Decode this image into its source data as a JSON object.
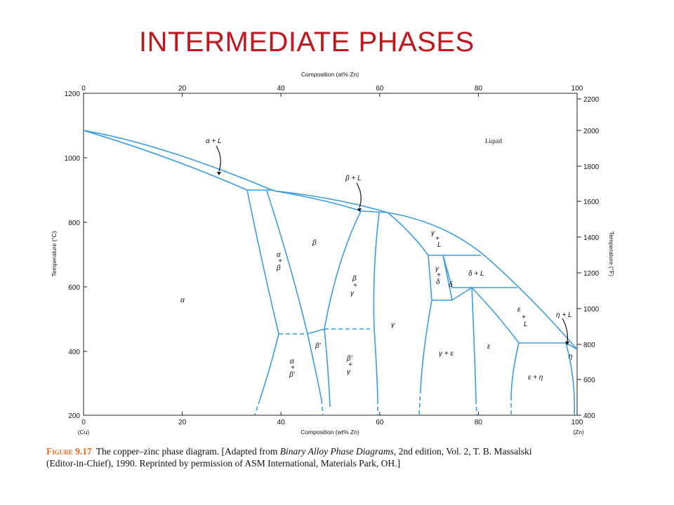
{
  "slide": {
    "title": "INTERMEDIATE PHASES"
  },
  "axes": {
    "top_label": "Composition (at% Zn)",
    "bottom_label": "Composition (wt% Zn)",
    "left_label": "Temperature (°C)",
    "right_label": "Temperature (°F)",
    "top_ticks": [
      "0",
      "20",
      "40",
      "60",
      "80",
      "100"
    ],
    "bottom_ticks": [
      "0",
      "20",
      "40",
      "60",
      "80",
      "100"
    ],
    "bottom_end_labels": [
      "(Cu)",
      "(Zn)"
    ],
    "left_ticks": [
      "1200",
      "1000",
      "800",
      "600",
      "400",
      "200"
    ],
    "right_ticks": [
      "2200",
      "2000",
      "1800",
      "1600",
      "1400",
      "1200",
      "1000",
      "800",
      "600",
      "400"
    ]
  },
  "phases": {
    "liquid": "Liquid",
    "alpha_L": "α + L",
    "beta_L": "β + L",
    "gamma_L": [
      "γ",
      "+",
      "L"
    ],
    "delta_L": "δ + L",
    "eps_L": [
      "ε",
      "+",
      "L"
    ],
    "eta_L": "η + L",
    "alpha": "α",
    "beta": "β",
    "alpha_beta": [
      "α",
      "+",
      "β"
    ],
    "beta_gamma": [
      "β",
      "+",
      "γ"
    ],
    "gamma": "γ",
    "gamma_delta": [
      "γ",
      "+",
      "δ"
    ],
    "delta": "δ",
    "beta_prime": "β′",
    "alpha_betap": [
      "α",
      "+",
      "β′"
    ],
    "betap_gamma": [
      "β′",
      "+",
      "γ"
    ],
    "gamma_eps": "γ + ε",
    "eps": "ε",
    "eps_eta": "ε + η",
    "eta": "η"
  },
  "caption": {
    "figure_label": "Figure 9.17",
    "text_1": "The copper–zinc phase diagram. [Adapted from ",
    "italic": "Binary Alloy Phase Diagrams",
    "text_2": ", 2nd edition, Vol. 2, T. B. Massalski (Editor-in-Chief), 1990. Reprinted by permission of ASM International, Materials Park, OH.]"
  },
  "colors": {
    "title": "#c0161d",
    "lines": "#3a9de0",
    "figure_label": "#e46b1f"
  }
}
